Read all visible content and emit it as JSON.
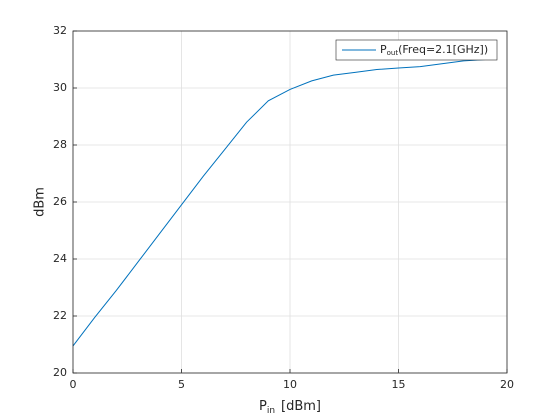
{
  "chart_data": {
    "type": "line",
    "xlabel": "P",
    "xlabel_subscript": "in",
    "xlabel_suffix": "[dBm]",
    "ylabel": "dBm",
    "x": [
      0,
      1,
      2,
      3,
      4,
      5,
      6,
      7,
      8,
      9,
      10,
      11,
      12,
      13,
      14,
      15,
      16,
      17,
      18,
      19
    ],
    "series": [
      {
        "name": "P",
        "name_subscript": "out",
        "name_suffix": "(Freq=2.1[GHz])",
        "color": "#0072bd",
        "values": [
          20.95,
          21.95,
          22.9,
          23.9,
          24.9,
          25.9,
          26.9,
          27.85,
          28.8,
          29.55,
          29.95,
          30.25,
          30.45,
          30.55,
          30.65,
          30.7,
          30.75,
          30.85,
          30.95,
          31.0
        ]
      }
    ],
    "xlim": [
      0,
      20
    ],
    "xticks": [
      0,
      5,
      10,
      15,
      20
    ],
    "ylim": [
      20,
      32
    ],
    "yticks": [
      20,
      22,
      24,
      26,
      28,
      30,
      32
    ],
    "grid": true,
    "legend": "northeast"
  }
}
